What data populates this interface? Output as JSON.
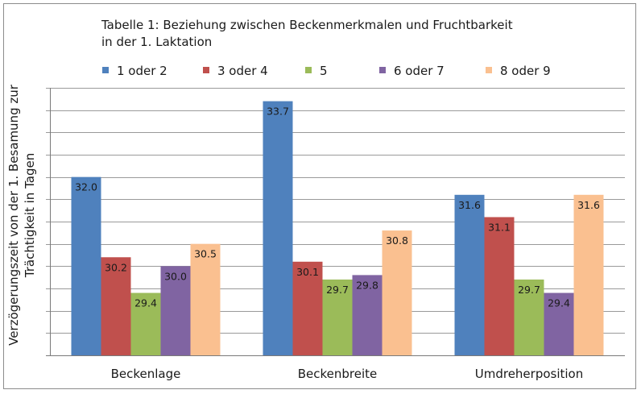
{
  "chart_data": {
    "type": "bar",
    "title_line1": "Tabelle 1: Beziehung zwischen Beckenmerkmalen und Fruchtbarkeit",
    "title_line2": "in der 1. Laktation",
    "ylabel_line1": "Verzögerungszeit von der 1. Besamung zur",
    "ylabel_line2": "Trächtigkeit in Tagen",
    "xlabel": "",
    "categories": [
      "Beckenlage",
      "Beckenbreite",
      "Umdreherposition"
    ],
    "series": [
      {
        "name": "1 oder 2",
        "color": "#4f81bd",
        "values": [
          32.0,
          33.7,
          31.6
        ]
      },
      {
        "name": "3 oder 4",
        "color": "#c0504d",
        "values": [
          30.2,
          30.1,
          31.1
        ]
      },
      {
        "name": "5",
        "color": "#9bbb59",
        "values": [
          29.4,
          29.7,
          29.7
        ]
      },
      {
        "name": "6 oder 7",
        "color": "#8064a2",
        "values": [
          30.0,
          29.8,
          29.4
        ]
      },
      {
        "name": "8 oder 9",
        "color": "#fac090",
        "values": [
          30.5,
          30.8,
          31.6
        ]
      }
    ],
    "ylim": [
      28.0,
      34.0
    ],
    "ytick_step": 0.5,
    "grid": true,
    "legend_position": "top"
  }
}
